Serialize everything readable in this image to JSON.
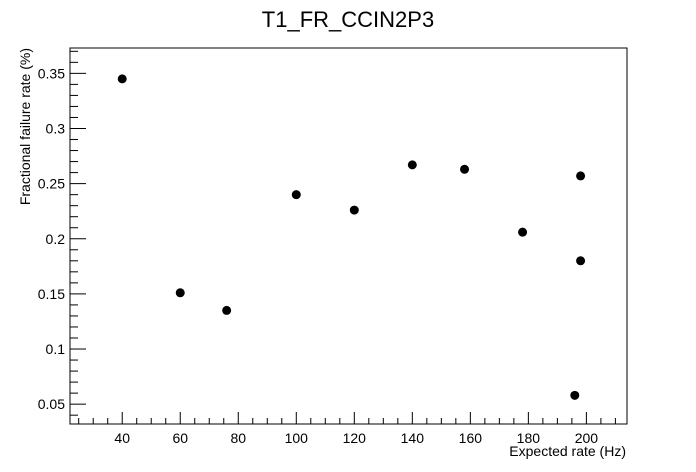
{
  "chart_data": {
    "type": "scatter",
    "title": "T1_FR_CCIN2P3",
    "xlabel": "Expected rate (Hz)",
    "ylabel": "Fractional failure rate (%)",
    "xlim": [
      22,
      214
    ],
    "ylim": [
      0.032,
      0.373
    ],
    "x_ticks": [
      40,
      60,
      80,
      100,
      120,
      140,
      160,
      180,
      200
    ],
    "x_tick_labels": [
      "40",
      "60",
      "80",
      "100",
      "120",
      "140",
      "160",
      "180",
      "200"
    ],
    "y_ticks": [
      0.05,
      0.1,
      0.15,
      0.2,
      0.25,
      0.3,
      0.35
    ],
    "y_tick_labels": [
      "0.05",
      "0.1",
      "0.15",
      "0.2",
      "0.25",
      "0.3",
      "0.35"
    ],
    "grid": false,
    "legend": "none",
    "marker_color": "#000000",
    "points": [
      {
        "x": 40,
        "y": 0.345
      },
      {
        "x": 60,
        "y": 0.151
      },
      {
        "x": 76,
        "y": 0.135
      },
      {
        "x": 100,
        "y": 0.24
      },
      {
        "x": 120,
        "y": 0.226
      },
      {
        "x": 140,
        "y": 0.267
      },
      {
        "x": 158,
        "y": 0.263
      },
      {
        "x": 178,
        "y": 0.206
      },
      {
        "x": 196,
        "y": 0.058
      },
      {
        "x": 198,
        "y": 0.257
      },
      {
        "x": 198,
        "y": 0.18
      }
    ]
  }
}
